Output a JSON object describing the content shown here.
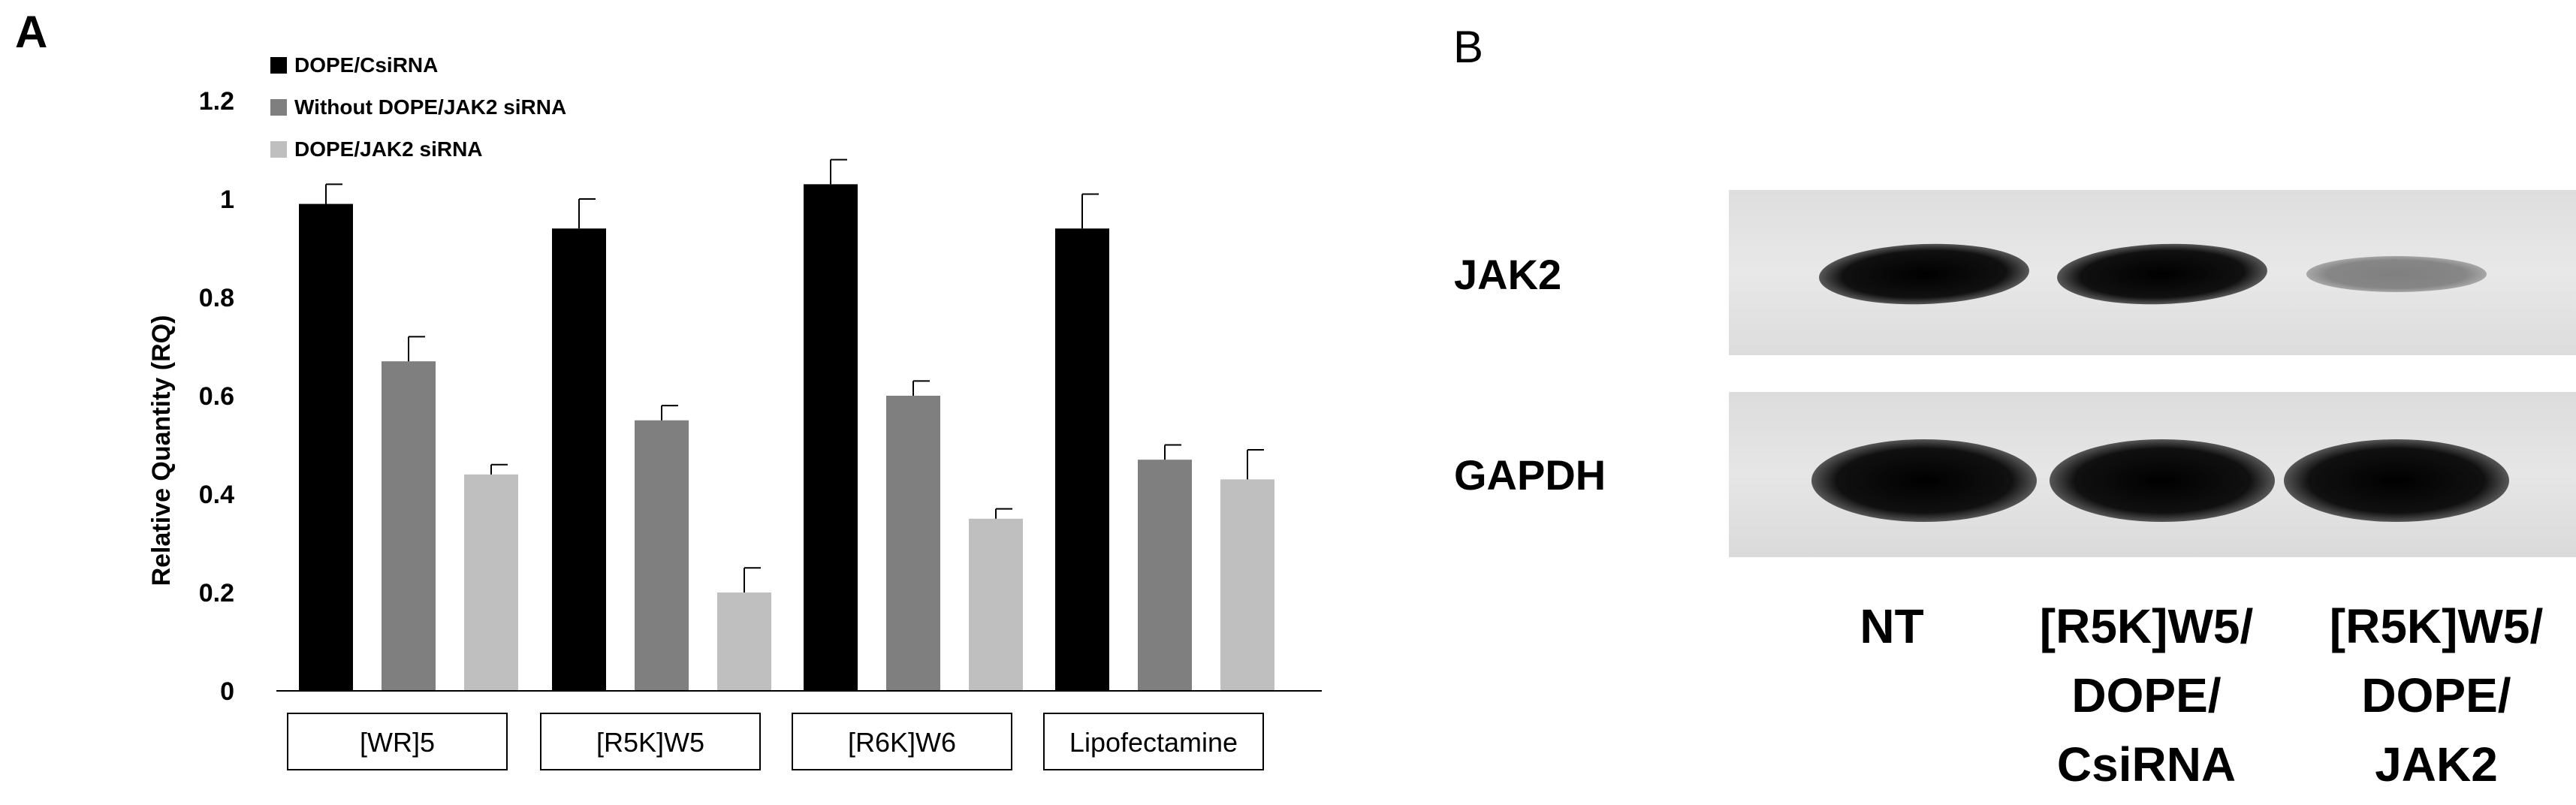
{
  "panel_a_label": "A",
  "panel_b_label": "B",
  "chart_data": {
    "type": "bar",
    "title": "",
    "xlabel": "",
    "ylabel": "Relative Quantity (RQ)",
    "ylim": [
      0,
      1.2
    ],
    "yticks": [
      "0",
      "0.2",
      "0.4",
      "0.6",
      "0.8",
      "1",
      "1.2"
    ],
    "categories": [
      "[WR]5",
      "[R5K]W5",
      "[R6K]W6",
      "Lipofectamine"
    ],
    "legend_position": "top-left",
    "grid": false,
    "series": [
      {
        "name": "DOPE/CsiRNA",
        "color": "#000000",
        "values": [
          0.99,
          0.94,
          1.03,
          0.94
        ],
        "errors": [
          0.04,
          0.06,
          0.05,
          0.07
        ]
      },
      {
        "name": "Without DOPE/JAK2 siRNA",
        "color": "#7f7f7f",
        "values": [
          0.67,
          0.55,
          0.6,
          0.47
        ],
        "errors": [
          0.05,
          0.03,
          0.03,
          0.03
        ]
      },
      {
        "name": "DOPE/JAK2 siRNA",
        "color": "#bfbfbf",
        "values": [
          0.44,
          0.2,
          0.35,
          0.43
        ],
        "errors": [
          0.02,
          0.05,
          0.02,
          0.06
        ]
      }
    ]
  },
  "blot": {
    "rows": [
      {
        "label": "JAK2",
        "band_intensity": [
          1.0,
          1.0,
          0.45
        ]
      },
      {
        "label": "GAPDH",
        "band_intensity": [
          1.0,
          1.0,
          1.0
        ]
      }
    ],
    "lanes": [
      {
        "lines": [
          "NT"
        ]
      },
      {
        "lines": [
          "[R5K]W5/",
          "DOPE/",
          "CsiRNA"
        ]
      },
      {
        "lines": [
          "[R5K]W5/",
          "DOPE/",
          "JAK2"
        ]
      }
    ]
  }
}
